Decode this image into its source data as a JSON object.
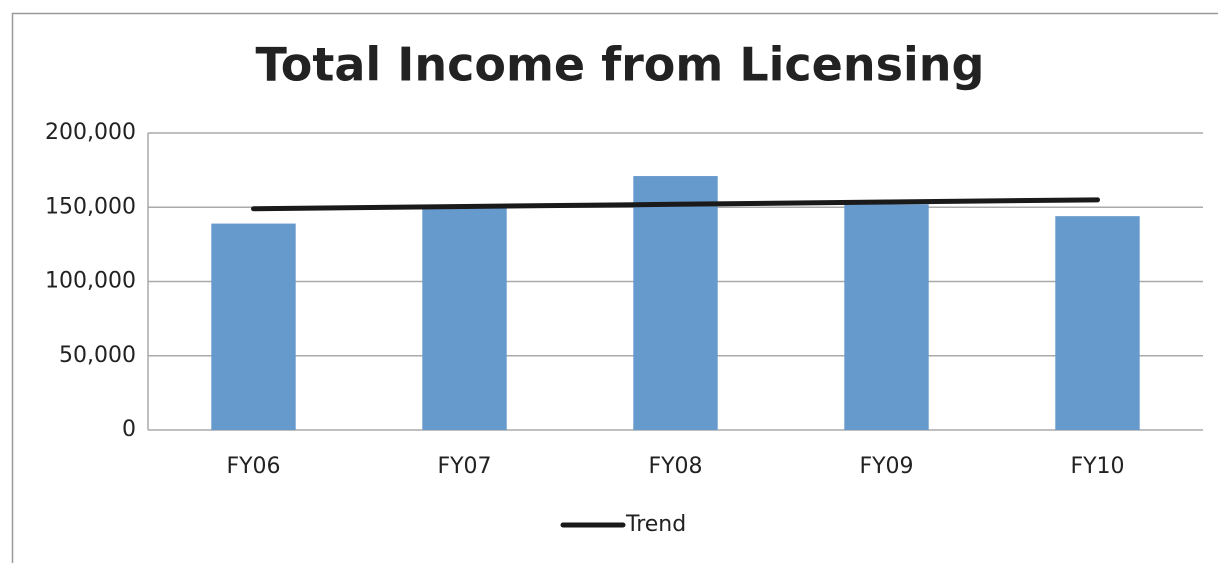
{
  "chart_data": {
    "type": "bar",
    "title": "Total Income from Licensing",
    "categories": [
      "FY06",
      "FY07",
      "FY08",
      "FY09",
      "FY10"
    ],
    "series": [
      {
        "color": "#6699cc",
        "values": [
          139000,
          150000,
          171000,
          152000,
          144000
        ]
      },
      {
        "name": "Trend",
        "type": "line",
        "color": "#1a1a1a",
        "values": [
          149000,
          150500,
          152000,
          153500,
          155000
        ]
      }
    ],
    "ylim": [
      0,
      200000
    ],
    "yticks": [
      0,
      {
        "value": 50000,
        "label": "50,000"
      },
      {
        "value": 100000,
        "label": "100,000"
      },
      {
        "value": 150000,
        "label": "150,000"
      },
      {
        "value": 200000,
        "label": "200,000"
      }
    ],
    "grid": true,
    "legend": "bottom"
  }
}
